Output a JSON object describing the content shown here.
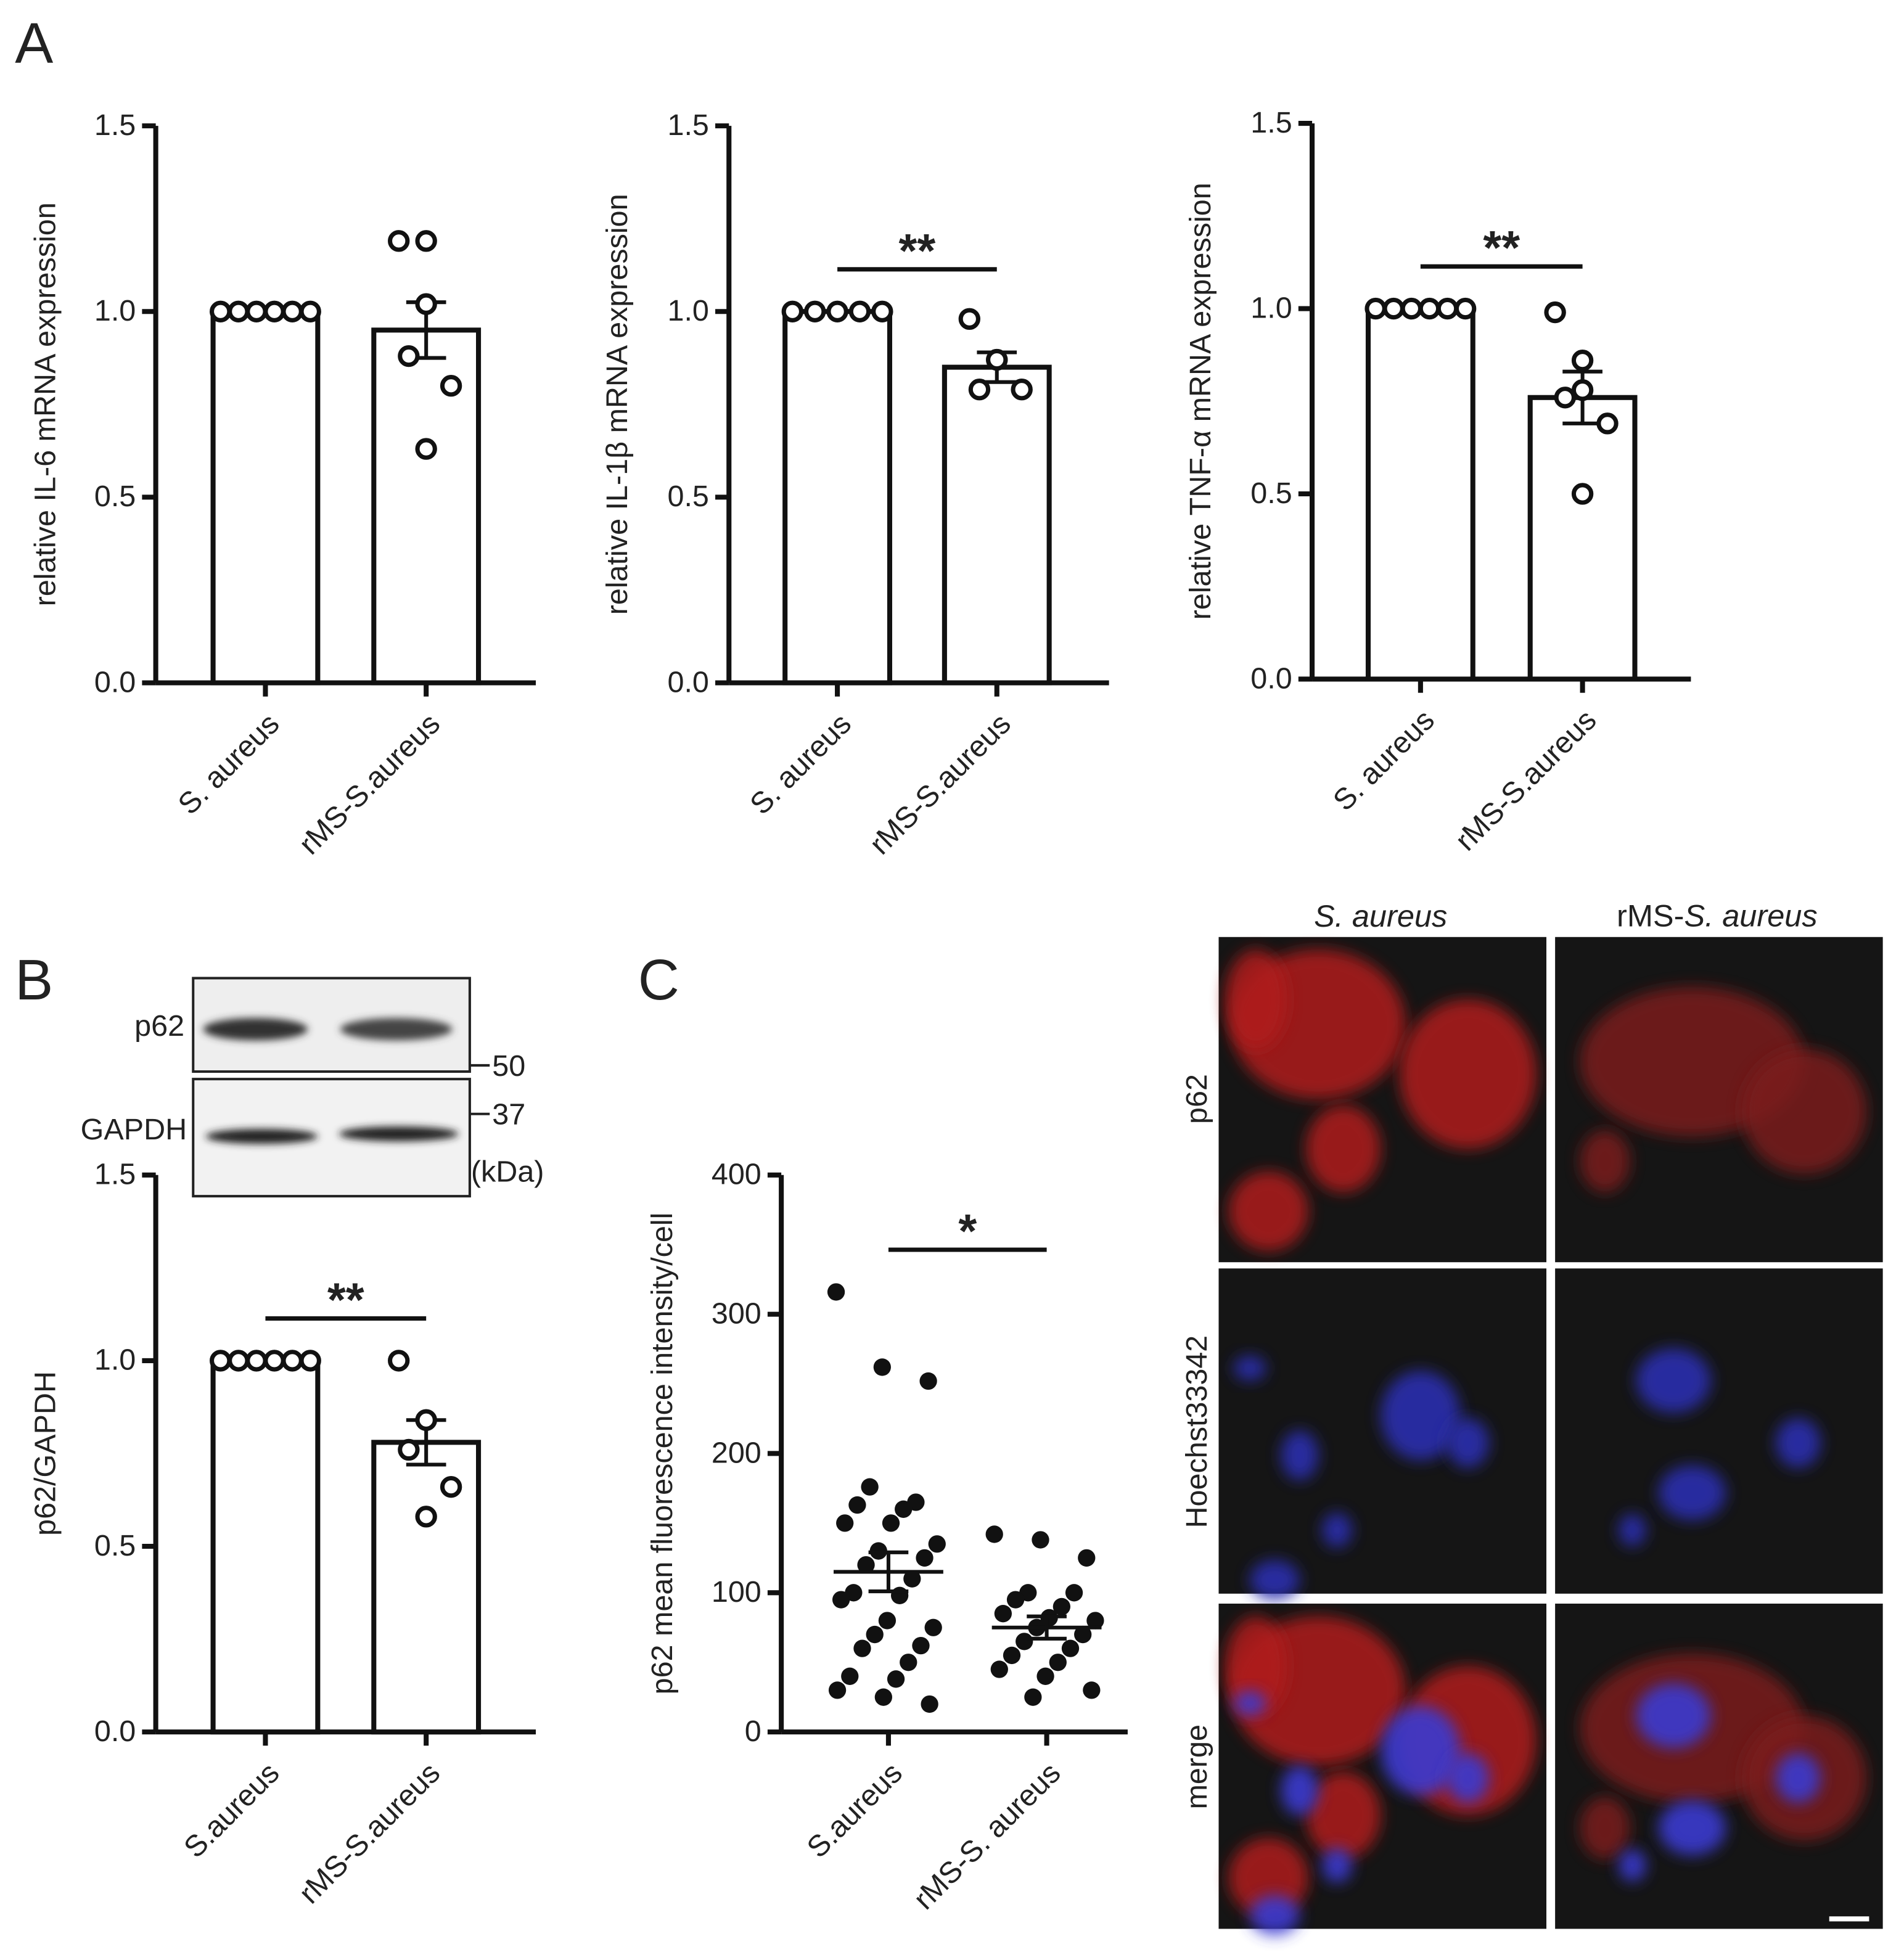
{
  "panels": [
    "A",
    "B",
    "C"
  ],
  "blot": {
    "bands": [
      "p62",
      "GAPDH"
    ],
    "markers": [
      "50",
      "37"
    ],
    "unit": "(kDa)"
  },
  "micrographs": {
    "columns": [
      {
        "italic": "S. aureus"
      },
      {
        "plain": "rMS-",
        "italic": "S. aureus"
      }
    ],
    "rows": [
      "p62",
      "Hoechst33342",
      "merge"
    ]
  },
  "chart_data": [
    {
      "type": "bar",
      "ylabel": "relative IL-6 mRNA expression",
      "categories": [
        "S. aureus",
        "rMS-S.aureus"
      ],
      "values": [
        1.0,
        0.95
      ],
      "errors": [
        0,
        0.075
      ],
      "points": [
        [
          1.0,
          1.0,
          1.0,
          1.0,
          1.0,
          1.0
        ],
        [
          1.19,
          1.19,
          1.02,
          0.88,
          0.8,
          0.63
        ]
      ],
      "ylim": [
        0,
        1.5
      ],
      "yticks": [
        {
          "value": 0,
          "label": "0.0"
        },
        {
          "value": 0.5,
          "label": "0.5"
        },
        {
          "value": 1,
          "label": "1.0"
        },
        {
          "value": 1.5,
          "label": "1.5"
        }
      ]
    },
    {
      "type": "bar",
      "ylabel": "relative IL-1β mRNA expression",
      "categories": [
        "S. aureus",
        "rMS-S.aureus"
      ],
      "values": [
        1.0,
        0.85
      ],
      "errors": [
        0,
        0.04
      ],
      "points": [
        [
          1.0,
          1.0,
          1.0,
          1.0,
          1.0
        ],
        [
          0.98,
          0.87,
          0.87,
          0.79,
          0.79
        ]
      ],
      "significance": "**",
      "ylim": [
        0,
        1.5
      ],
      "yticks": [
        {
          "value": 0,
          "label": "0.0"
        },
        {
          "value": 0.5,
          "label": "0.5"
        },
        {
          "value": 1,
          "label": "1.0"
        },
        {
          "value": 1.5,
          "label": "1.5"
        }
      ]
    },
    {
      "type": "bar",
      "ylabel": "relative TNF-α mRNA expression",
      "categories": [
        "S. aureus",
        "rMS-S.aureus"
      ],
      "values": [
        1.0,
        0.76
      ],
      "errors": [
        0,
        0.07
      ],
      "points": [
        [
          1.0,
          1.0,
          1.0,
          1.0,
          1.0,
          1.0
        ],
        [
          0.99,
          0.86,
          0.78,
          0.76,
          0.69,
          0.5
        ]
      ],
      "significance": "**",
      "ylim": [
        0,
        1.5
      ],
      "yticks": [
        {
          "value": 0,
          "label": "0.0"
        },
        {
          "value": 0.5,
          "label": "0.5"
        },
        {
          "value": 1,
          "label": "1.0"
        },
        {
          "value": 1.5,
          "label": "1.5"
        }
      ]
    },
    {
      "type": "bar",
      "ylabel": "p62/GAPDH",
      "categories": [
        "S.aureus",
        "rMS-S.aureus"
      ],
      "values": [
        1.0,
        0.78
      ],
      "errors": [
        0,
        0.06
      ],
      "points": [
        [
          1.0,
          1.0,
          1.0,
          1.0,
          1.0,
          1.0
        ],
        [
          1.0,
          0.84,
          0.84,
          0.76,
          0.66,
          0.58
        ]
      ],
      "significance": "**",
      "ylim": [
        0,
        1.5
      ],
      "yticks": [
        {
          "value": 0,
          "label": "0.0"
        },
        {
          "value": 0.5,
          "label": "0.5"
        },
        {
          "value": 1,
          "label": "1.0"
        },
        {
          "value": 1.5,
          "label": "1.5"
        }
      ]
    },
    {
      "type": "dotplot",
      "ylabel": "p62 mean fluorescence intensity/cell",
      "categories": [
        "S.aureus",
        "rMS-S. aureus"
      ],
      "values": [
        115,
        75
      ],
      "errors": [
        14,
        8
      ],
      "points": [
        [
          316,
          262,
          252,
          176,
          165,
          163,
          160,
          150,
          150,
          135,
          130,
          125,
          120,
          110,
          100,
          98,
          95,
          80,
          75,
          70,
          62,
          60,
          50,
          40,
          38,
          30,
          25,
          20
        ],
        [
          142,
          138,
          125,
          100,
          100,
          95,
          90,
          85,
          82,
          80,
          75,
          70,
          65,
          60,
          55,
          50,
          45,
          40,
          30,
          25
        ]
      ],
      "significance": "*",
      "ylim": [
        0,
        400
      ],
      "yticks": [
        0,
        100,
        200,
        300,
        400
      ]
    }
  ]
}
